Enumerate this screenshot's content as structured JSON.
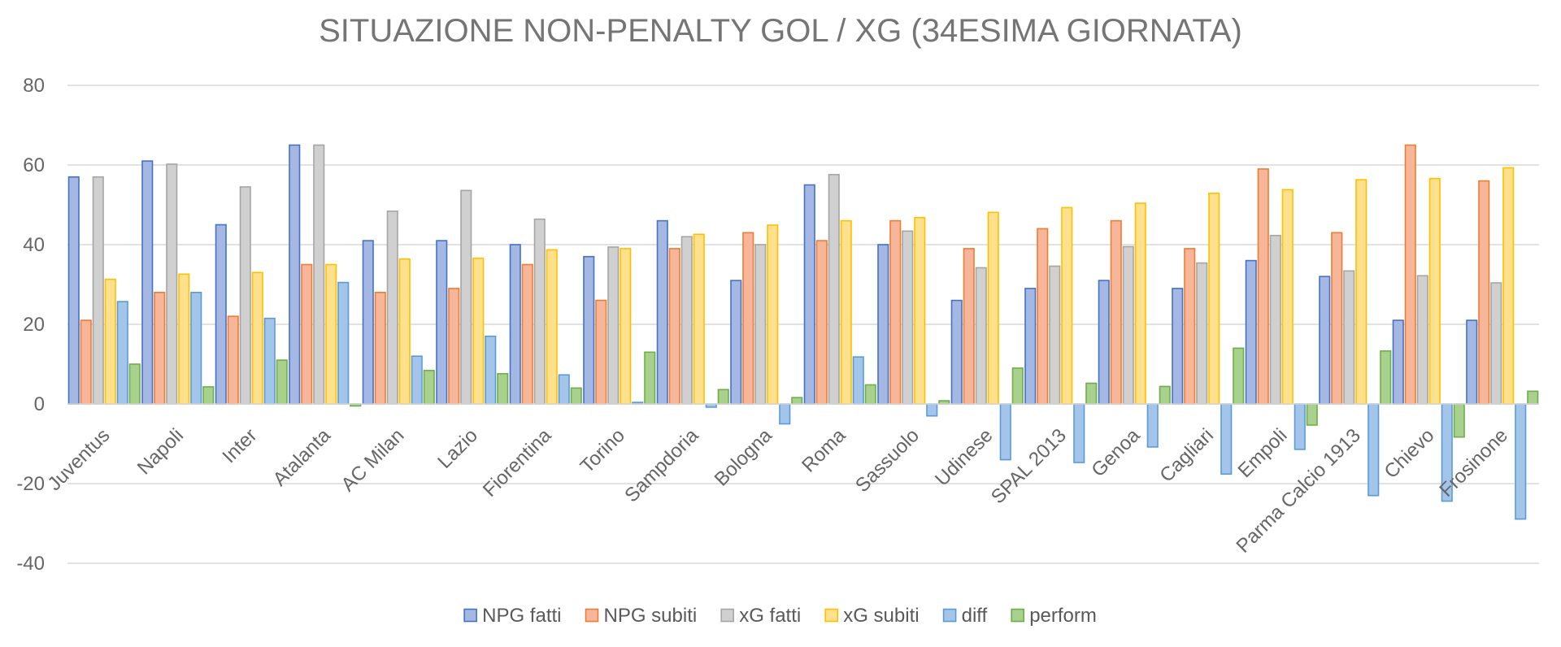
{
  "chart_data": {
    "type": "bar",
    "title": "SITUAZIONE NON-PENALTY GOL / XG (34ESIMA GIORNATA)",
    "xlabel": "",
    "ylabel": "",
    "ylim": [
      -40,
      80
    ],
    "yticks": [
      80,
      60,
      40,
      20,
      0,
      -20,
      -40
    ],
    "grid": true,
    "legend_position": "bottom",
    "categories": [
      "Juventus",
      "Napoli",
      "Inter",
      "Atalanta",
      "AC Milan",
      "Lazio",
      "Fiorentina",
      "Torino",
      "Sampdoria",
      "Bologna",
      "Roma",
      "Sassuolo",
      "Udinese",
      "SPAL 2013",
      "Genoa",
      "Cagliari",
      "Empoli",
      "Parma Calcio 1913",
      "Chievo",
      "Frosinone"
    ],
    "series": [
      {
        "name": "NPG fatti",
        "fill": "#a5b8e3",
        "stroke": "#4472c4",
        "values": [
          57,
          61,
          45,
          65,
          41,
          41,
          40,
          37,
          46,
          31,
          55,
          40,
          26,
          29,
          31,
          29,
          36,
          32,
          21,
          21
        ]
      },
      {
        "name": "NPG subiti",
        "fill": "#f7b69a",
        "stroke": "#ed7d31",
        "values": [
          21,
          28,
          22,
          35,
          28,
          29,
          35,
          26,
          39,
          43,
          41,
          46,
          39,
          44,
          46,
          39,
          59,
          43,
          65,
          56
        ]
      },
      {
        "name": "xG fatti",
        "fill": "#d0d0d0",
        "stroke": "#a5a5a5",
        "values": [
          57,
          60.2,
          54.5,
          65,
          48.4,
          53.6,
          46.4,
          39.4,
          42,
          40,
          57.6,
          43.4,
          34.2,
          34.6,
          39.5,
          35.4,
          42.3,
          33.4,
          32.2,
          30.4
        ]
      },
      {
        "name": "xG subiti",
        "fill": "#ffe08c",
        "stroke": "#ffc000",
        "values": [
          31.3,
          32.6,
          33,
          35,
          36.4,
          36.6,
          38.7,
          39,
          42.6,
          44.9,
          46,
          46.8,
          48.1,
          49.3,
          50.4,
          52.9,
          53.8,
          56.3,
          56.6,
          59.3
        ]
      },
      {
        "name": "diff",
        "fill": "#a4c5ea",
        "stroke": "#5b9bd5",
        "values": [
          25.7,
          28,
          21.5,
          30.5,
          12,
          17,
          7.3,
          0.4,
          -0.8,
          -5,
          11.8,
          -3,
          -14,
          -14.7,
          -10.8,
          -17.6,
          -11.4,
          -23,
          -24.4,
          -28.9
        ]
      },
      {
        "name": "perform",
        "fill": "#a9d18e",
        "stroke": "#70ad47",
        "values": [
          10,
          4.3,
          11,
          -0.5,
          8.4,
          7.6,
          4,
          13,
          3.6,
          1.6,
          4.8,
          0.8,
          9,
          5.2,
          4.4,
          14,
          -5.3,
          13.3,
          -8.3,
          3.2
        ]
      }
    ]
  }
}
